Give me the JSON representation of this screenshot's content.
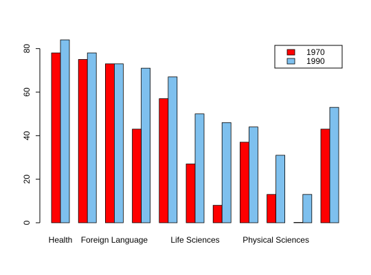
{
  "chart_data": {
    "type": "bar",
    "title": "",
    "xlabel": "",
    "ylabel": "",
    "ylim": [
      0,
      84
    ],
    "y_ticks": [
      0,
      20,
      40,
      60,
      80
    ],
    "grid": false,
    "legend_position": "top-right",
    "x_tick_labels": [
      "Health",
      "Foreign Language",
      "Life Sciences",
      "Physical Sciences"
    ],
    "x_tick_label_positions": [
      0,
      2,
      5,
      8
    ],
    "series": [
      {
        "name": "1970",
        "color": "#FF0000",
        "values": [
          78,
          75,
          73,
          43,
          57,
          27,
          8,
          37,
          13,
          0,
          43
        ]
      },
      {
        "name": "1990",
        "color": "#7EC0EE",
        "values": [
          84,
          78,
          73,
          71,
          67,
          50,
          46,
          44,
          31,
          13,
          53
        ]
      }
    ]
  }
}
